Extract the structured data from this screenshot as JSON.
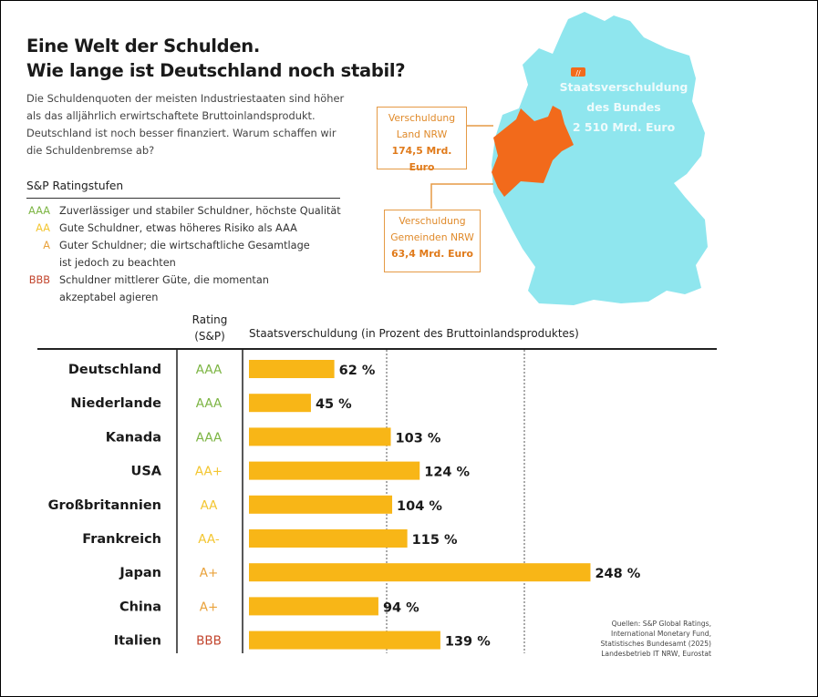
{
  "header": {
    "title_line1": "Eine Welt der Schulden.",
    "title_line2": "Wie lange ist Deutschland noch stabil?",
    "intro": "Die Schuldenquoten der meisten Industriestaaten sind höher als das alljährlich erwirtschaftete Bruttoinlandsprodukt. Deutschland ist noch besser finanziert. Warum schaffen wir die Schuldenbremse ab?"
  },
  "legend": {
    "title": "S&P Ratingstufen",
    "items": [
      {
        "code": "AAA",
        "text": "Zuverlässiger und stabiler Schuldner, höchste Qualität",
        "color": "#7db544"
      },
      {
        "code": "AA",
        "text": "Gute Schuldner, etwas höheres Risiko als AAA",
        "color": "#f3c632"
      },
      {
        "code": "A",
        "text": "Guter Schuldner; die wirtschaftliche Gesamtlage ist jedoch zu beachten",
        "color": "#e9a23b"
      },
      {
        "code": "BBB",
        "text": "Schuldner mittlerer Güte, die momentan akzeptabel agieren",
        "color": "#c2452d"
      }
    ]
  },
  "map": {
    "bund_line1": "Staatsverschuldung",
    "bund_line2": "des Bundes",
    "bund_value": "2 510 Mrd. Euro",
    "land_line1": "Verschuldung",
    "land_line2": "Land NRW",
    "land_value": "174,5 Mrd. Euro",
    "gem_line1": "Verschuldung",
    "gem_line2": "Gemeinden NRW",
    "gem_value": "63,4 Mrd. Euro",
    "germany_color": "#8fe6ee",
    "nrw_color": "#f26a1b"
  },
  "chart_data": {
    "type": "bar",
    "orientation": "horizontal",
    "rating_header": "Rating (S&P)",
    "xlabel": "Staatsverschuldung (in Prozent des Bruttoinlandsproduktes)",
    "categories": [
      "Deutschland",
      "Niederlande",
      "Kanada",
      "USA",
      "Großbritannien",
      "Frankreich",
      "Japan",
      "China",
      "Italien"
    ],
    "ratings": [
      "AAA",
      "AAA",
      "AAA",
      "AA+",
      "AA",
      "AA-",
      "A+",
      "A+",
      "BBB"
    ],
    "values": [
      62,
      45,
      103,
      124,
      104,
      115,
      248,
      94,
      139
    ],
    "value_labels": [
      "62 %",
      "45 %",
      "103 %",
      "124 %",
      "104 %",
      "115 %",
      "248 %",
      "94 %",
      "139 %"
    ],
    "gridlines": [
      100,
      200
    ],
    "xlim": [
      0,
      260
    ],
    "bar_color": "#f8b617"
  },
  "sources": [
    "Quellen: S&P Global Ratings,",
    "International Monetary Fund,",
    "Statistisches Bundesamt (2025)",
    "Landesbetrieb IT NRW, Eurostat"
  ]
}
